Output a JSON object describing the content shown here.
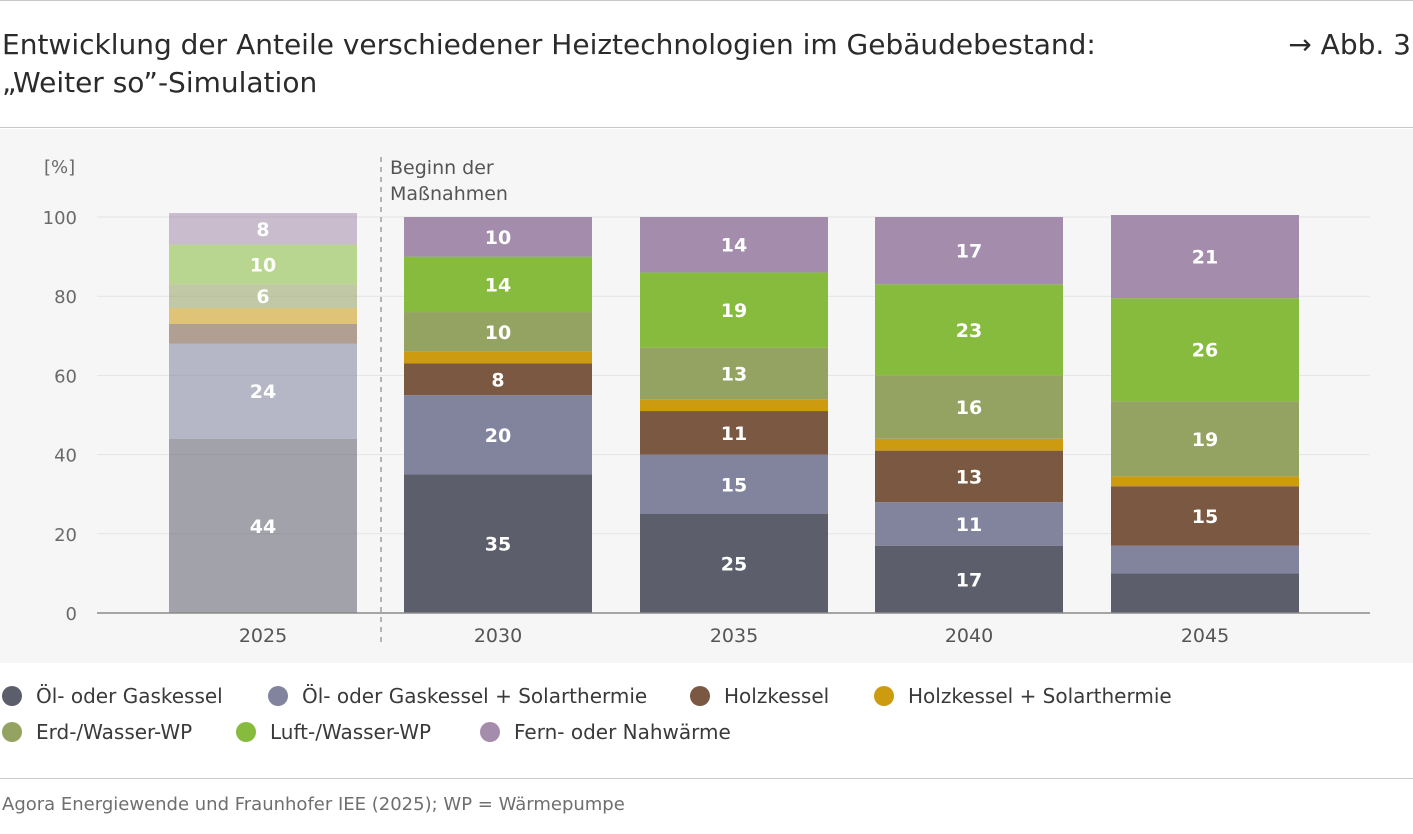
{
  "header": {
    "title_line1": "Entwicklung der Anteile verschiedener Heiztechnologien im Gebäudebestand:",
    "title_line2": "„Weiter so”-Simulation",
    "figure_ref": "→ Abb. 3"
  },
  "source": "Agora Energiewende und Fraunhofer IEE (2025); WP = Wärmepumpe",
  "chart_data": {
    "type": "bar",
    "stacked": true,
    "ylabel": "[%]",
    "ylim": [
      0,
      100
    ],
    "yticks": [
      0,
      20,
      40,
      60,
      80,
      100
    ],
    "grid": true,
    "legend_position": "bottom",
    "categories": [
      "2025",
      "2030",
      "2035",
      "2040",
      "2045"
    ],
    "annotation": {
      "text_line1": "Beginn der",
      "text_line2": "Maßnahmen",
      "between": [
        "2025",
        "2030"
      ]
    },
    "faded_categories": [
      "2025"
    ],
    "series": [
      {
        "name": "Öl- oder Gaskessel",
        "color": "#5c5e6b",
        "values": [
          44,
          35,
          25,
          17,
          10
        ],
        "labels": [
          "44",
          "35",
          "25",
          "17",
          ""
        ]
      },
      {
        "name": "Öl- oder Gaskessel + Solarthermie",
        "color": "#82849e",
        "values": [
          24,
          20,
          15,
          11,
          7
        ],
        "labels": [
          "24",
          "20",
          "15",
          "11",
          ""
        ]
      },
      {
        "name": "Holzkessel",
        "color": "#7a5841",
        "values": [
          5,
          8,
          11,
          13,
          15
        ],
        "labels": [
          "",
          "8",
          "11",
          "13",
          "15"
        ]
      },
      {
        "name": "Holzkessel + Solarthermie",
        "color": "#cc9b10",
        "values": [
          4,
          3,
          3,
          3,
          2.5
        ],
        "labels": [
          "",
          "",
          "",
          "",
          ""
        ]
      },
      {
        "name": "Erd-/Wasser-WP",
        "color": "#95a362",
        "values": [
          6,
          10,
          13,
          16,
          19
        ],
        "labels": [
          "6",
          "10",
          "13",
          "16",
          "19"
        ]
      },
      {
        "name": "Luft-/Wasser-WP",
        "color": "#87bb3d",
        "values": [
          10,
          14,
          19,
          23,
          26
        ],
        "labels": [
          "10",
          "14",
          "19",
          "23",
          "26"
        ]
      },
      {
        "name": "Fern- oder Nahwärme",
        "color": "#a38cac",
        "values": [
          8,
          10,
          14,
          17,
          21
        ],
        "labels": [
          "8",
          "10",
          "14",
          "17",
          "21"
        ]
      }
    ]
  }
}
